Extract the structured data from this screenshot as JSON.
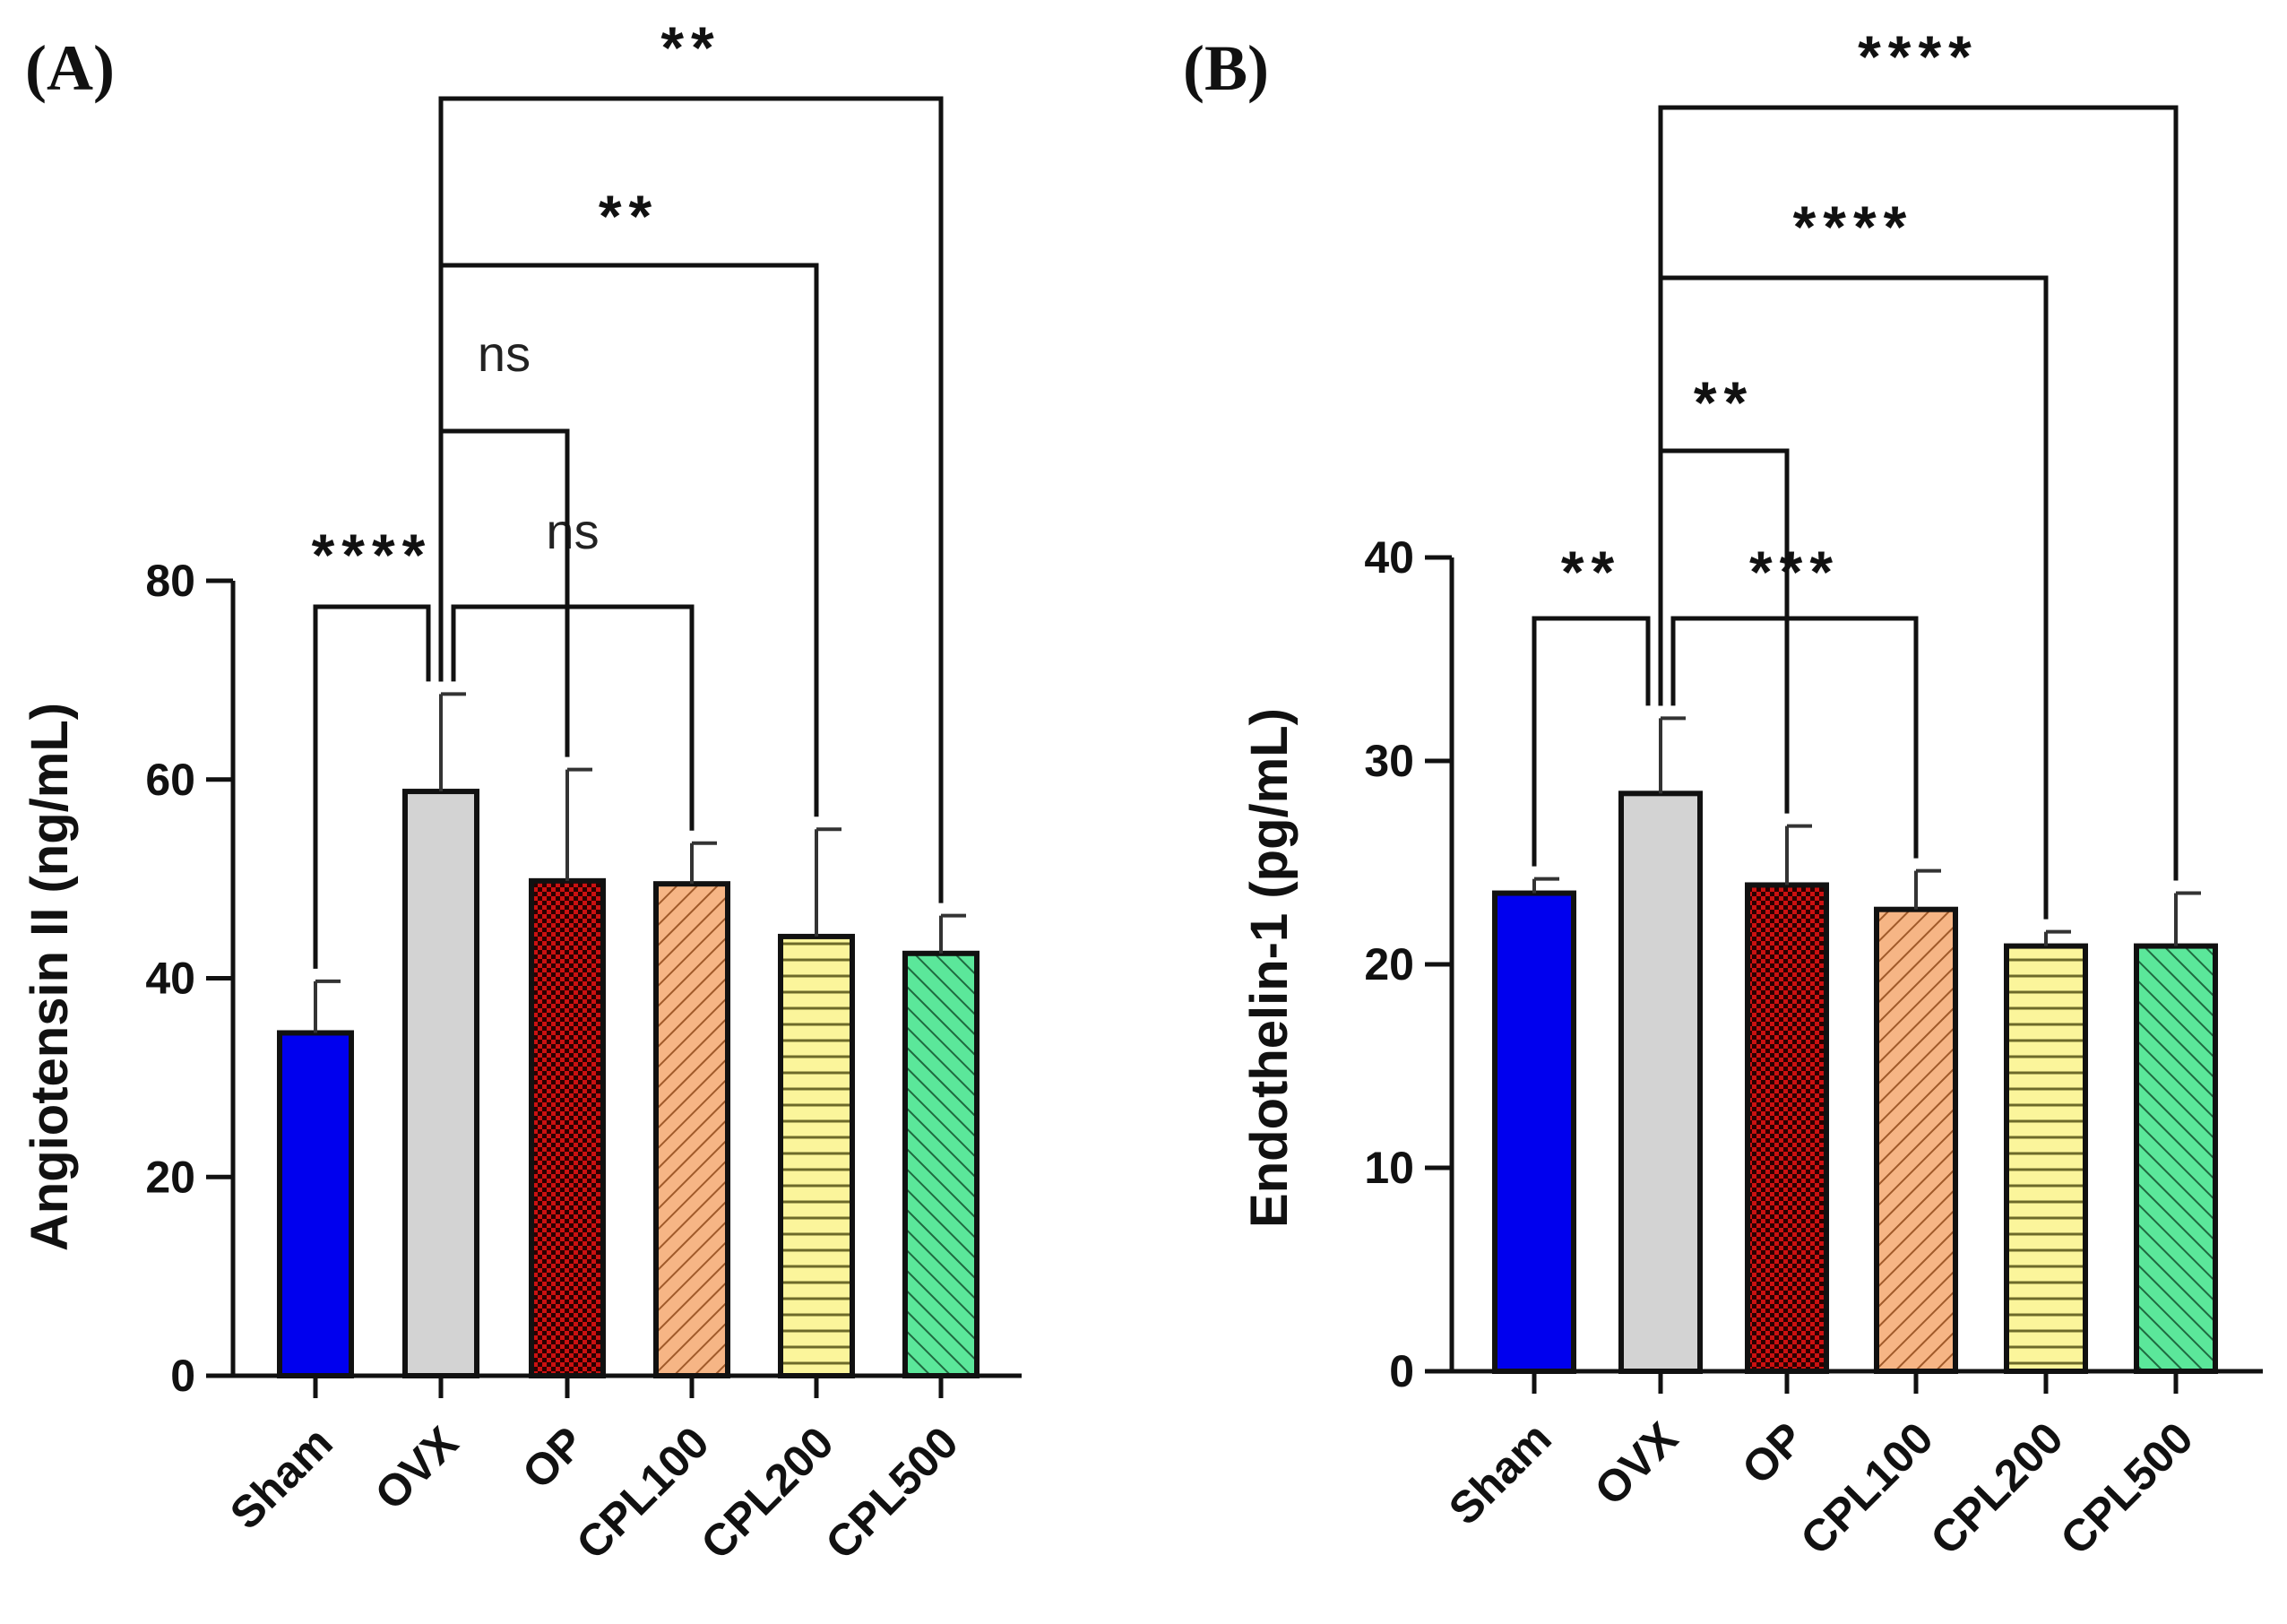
{
  "chart_data": [
    {
      "panel": "(A)",
      "type": "bar",
      "categories": [
        "Sham",
        "OVX",
        "OP",
        "CPL100",
        "CPL200",
        "CPL500"
      ],
      "values": [
        34.5,
        58.8,
        49.8,
        49.5,
        44.2,
        42.5
      ],
      "errors": [
        5.2,
        9.8,
        11.2,
        4.1,
        10.8,
        3.8
      ],
      "ylabel": "Angiotensin II (ng/mL)",
      "ylim": [
        0,
        80
      ],
      "yticks": [
        0,
        20,
        40,
        60,
        80
      ],
      "comparisons": [
        {
          "from": "Sham",
          "to": "OVX",
          "label": "****"
        },
        {
          "from": "OVX",
          "to": "CPL100",
          "label": "ns"
        },
        {
          "from": "OVX",
          "to": "OP",
          "label": "ns"
        },
        {
          "from": "OVX",
          "to": "CPL200",
          "label": "**"
        },
        {
          "from": "OVX",
          "to": "CPL500",
          "label": "**"
        }
      ]
    },
    {
      "panel": "(B)",
      "type": "bar",
      "categories": [
        "Sham",
        "OVX",
        "OP",
        "CPL100",
        "CPL200",
        "CPL500"
      ],
      "values": [
        23.5,
        28.4,
        23.9,
        22.7,
        20.9,
        20.9
      ],
      "errors": [
        0.7,
        3.7,
        2.9,
        1.9,
        0.7,
        2.6
      ],
      "ylabel": "Endothelin-1 (pg/mL)",
      "ylim": [
        0,
        40
      ],
      "yticks": [
        0,
        10,
        20,
        30,
        40
      ],
      "comparisons": [
        {
          "from": "Sham",
          "to": "OVX",
          "label": "**"
        },
        {
          "from": "OVX",
          "to": "CPL100",
          "label": "***"
        },
        {
          "from": "OVX",
          "to": "OP",
          "label": "**"
        },
        {
          "from": "OVX",
          "to": "CPL200",
          "label": "****"
        },
        {
          "from": "OVX",
          "to": "CPL500",
          "label": "****"
        }
      ]
    }
  ],
  "colors": {
    "sham": "#0000ee",
    "ovx": "#d3d3d3",
    "op_base": "#cc1111",
    "op_dot": "#2a0000",
    "cpl100_base": "#f6b585",
    "cpl100_line": "#a05a2a",
    "cpl200_base": "#fbf59b",
    "cpl200_line": "#6d6a2a",
    "cpl500_base": "#5be79a",
    "cpl500_line": "#1f6a40",
    "axis": "#111111"
  }
}
